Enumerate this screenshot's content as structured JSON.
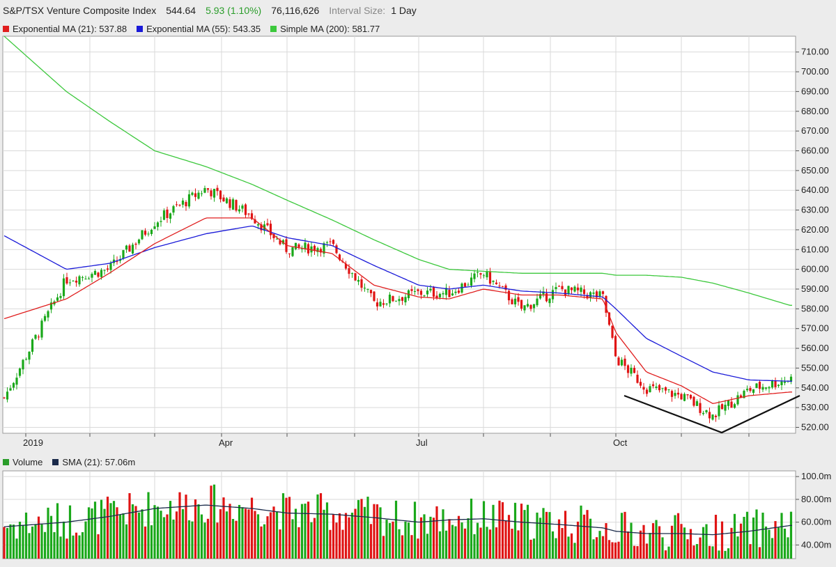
{
  "header": {
    "symbol": "S&P/TSX Venture Composite Index",
    "last": "544.64",
    "change": "5.93 (1.10%)",
    "volume": "76,116,626",
    "interval_label": "Interval Size:",
    "interval_value": "1 Day"
  },
  "legend": {
    "ema21": {
      "label": "Exponential MA (21): 537.88",
      "color": "#e01e1e"
    },
    "ema55": {
      "label": "Exponential MA (55): 543.35",
      "color": "#1a1ad8"
    },
    "sma200": {
      "label": "Simple MA (200): 581.77",
      "color": "#3cc83c"
    }
  },
  "volume_legend": {
    "volume": {
      "label": "Volume",
      "color": "#2a9d2a"
    },
    "sma": {
      "label": "SMA (21): 57.06m",
      "color": "#1a2a4a"
    }
  },
  "colors": {
    "up": "#1aa81a",
    "down": "#e01414",
    "background": "#ffffff",
    "grid": "#d9d9d9",
    "annotation": "#111111"
  },
  "chart_data": [
    {
      "type": "line",
      "title": "S&P/TSX Venture Composite Index",
      "x": [
        "2019-01",
        "2019-01-20",
        "2019-02-10",
        "2019-03-01",
        "2019-03-24",
        "2019-04-15",
        "2019-05-01",
        "2019-05-21",
        "2019-06-10",
        "2019-07-01",
        "2019-07-15",
        "2019-08-01",
        "2019-08-18",
        "2019-09-05",
        "2019-09-25",
        "2019-10-01",
        "2019-10-15",
        "2019-11-01",
        "2019-11-15",
        "2019-12-01",
        "2019-12-20"
      ],
      "x_ticks": [
        "2019",
        "Apr",
        "Jul",
        "Oct"
      ],
      "y_ticks": [
        "520.00",
        "530.00",
        "540.00",
        "550.00",
        "560.00",
        "570.00",
        "580.00",
        "590.00",
        "600.00",
        "610.00",
        "620.00",
        "630.00",
        "640.00",
        "650.00",
        "660.00",
        "670.00",
        "680.00",
        "690.00",
        "700.00",
        "710.00"
      ],
      "ylim": [
        517,
        718
      ],
      "grid": true,
      "series": [
        {
          "name": "Close",
          "values": [
            535,
            595,
            600,
            624,
            641,
            627,
            610,
            612,
            583,
            588,
            588,
            598,
            580,
            590,
            586,
            555,
            540,
            536,
            526,
            539,
            544.64
          ]
        },
        {
          "name": "Exponential MA (21): 537.88",
          "values": [
            575,
            585,
            598,
            613,
            626,
            626,
            612,
            608,
            592,
            586,
            585,
            590,
            587,
            587,
            585,
            568,
            548,
            541,
            532,
            536,
            537.88
          ]
        },
        {
          "name": "Exponential MA (55): 543.35",
          "values": [
            617,
            600,
            603,
            611,
            618,
            622,
            616,
            612,
            602,
            592,
            590,
            592,
            589,
            588,
            586,
            580,
            565,
            556,
            548,
            544,
            543.35
          ]
        },
        {
          "name": "Simple MA (200): 581.77",
          "values": [
            718,
            690,
            675,
            660,
            652,
            643,
            635,
            625,
            615,
            605,
            600,
            599,
            598,
            598,
            598,
            597,
            597,
            596,
            593,
            588,
            581.77
          ]
        }
      ]
    },
    {
      "type": "bar",
      "title": "Volume",
      "x_ticks": [
        "40.00m",
        "60.00m",
        "80.00m",
        "100.0m"
      ],
      "ylim": [
        28,
        105
      ],
      "grid": true,
      "series": [
        {
          "name": "SMA (21): 57.06m",
          "values": [
            56,
            60,
            65,
            72,
            75,
            72,
            68,
            67,
            64,
            60,
            62,
            63,
            60,
            58,
            55,
            52,
            50,
            50,
            49,
            52,
            57.06
          ]
        }
      ]
    }
  ]
}
